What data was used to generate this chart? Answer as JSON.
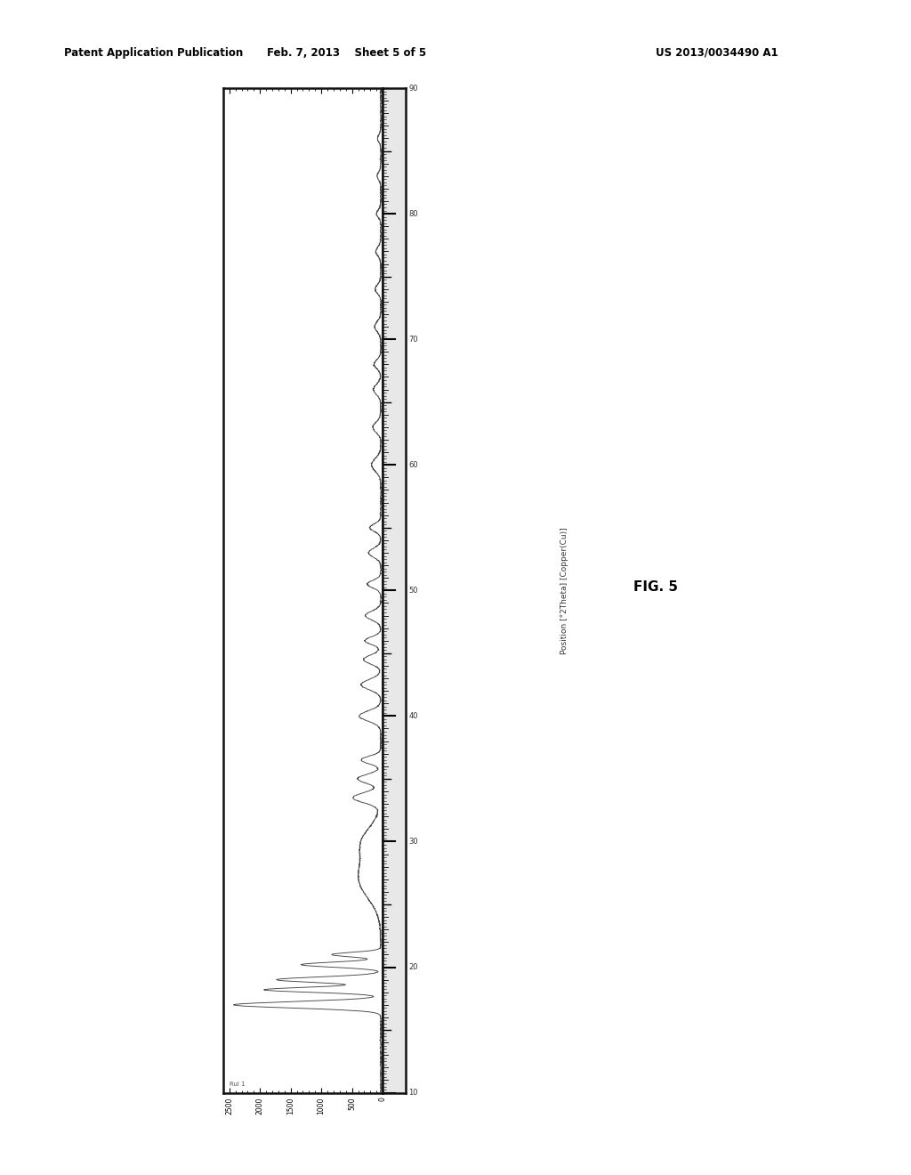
{
  "header_left": "Patent Application Publication",
  "header_center": "Feb. 7, 2013    Sheet 5 of 5",
  "header_right": "US 2013/0034490 A1",
  "fig_label": "FIG. 5",
  "ylabel_rotated": "Position [°2Theta] [Copper(Cu)]",
  "y_ticks": [
    10,
    20,
    30,
    40,
    50,
    60,
    70,
    80,
    90
  ],
  "y_range": [
    10,
    90
  ],
  "x_range": [
    0,
    2600
  ],
  "x_ticks": [
    0,
    500,
    1000,
    1500,
    2000,
    2500
  ],
  "plot_title": "Rul 1",
  "background_color": "#ffffff",
  "plot_bg_color": "#ffffff",
  "line_color": "#444444",
  "border_color": "#111111"
}
